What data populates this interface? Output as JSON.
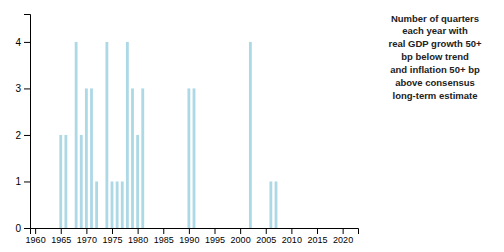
{
  "chart_data": {
    "type": "bar",
    "x": [
      1965,
      1966,
      1968,
      1969,
      1970,
      1971,
      1972,
      1974,
      1975,
      1976,
      1977,
      1978,
      1979,
      1980,
      1981,
      1990,
      1991,
      2002,
      2006,
      2007
    ],
    "values": [
      2,
      2,
      4,
      2,
      3,
      3,
      1,
      4,
      1,
      1,
      1,
      4,
      3,
      2,
      3,
      3,
      3,
      4,
      1,
      1
    ],
    "color": "#add8e6",
    "xlim": [
      1959,
      2023
    ],
    "ylim": [
      0,
      4.6
    ],
    "xticks": [
      1960,
      1965,
      1970,
      1975,
      1980,
      1985,
      1990,
      1995,
      2000,
      2005,
      2010,
      2015,
      2020
    ],
    "yticks": [
      0,
      1,
      2,
      3,
      4
    ],
    "annotation": "Number of quarters\neach year with\nreal GDP growth 50+\nbp below trend\nand inflation 50+ bp\nabove consensus\nlong-term estimate",
    "grid": false
  }
}
